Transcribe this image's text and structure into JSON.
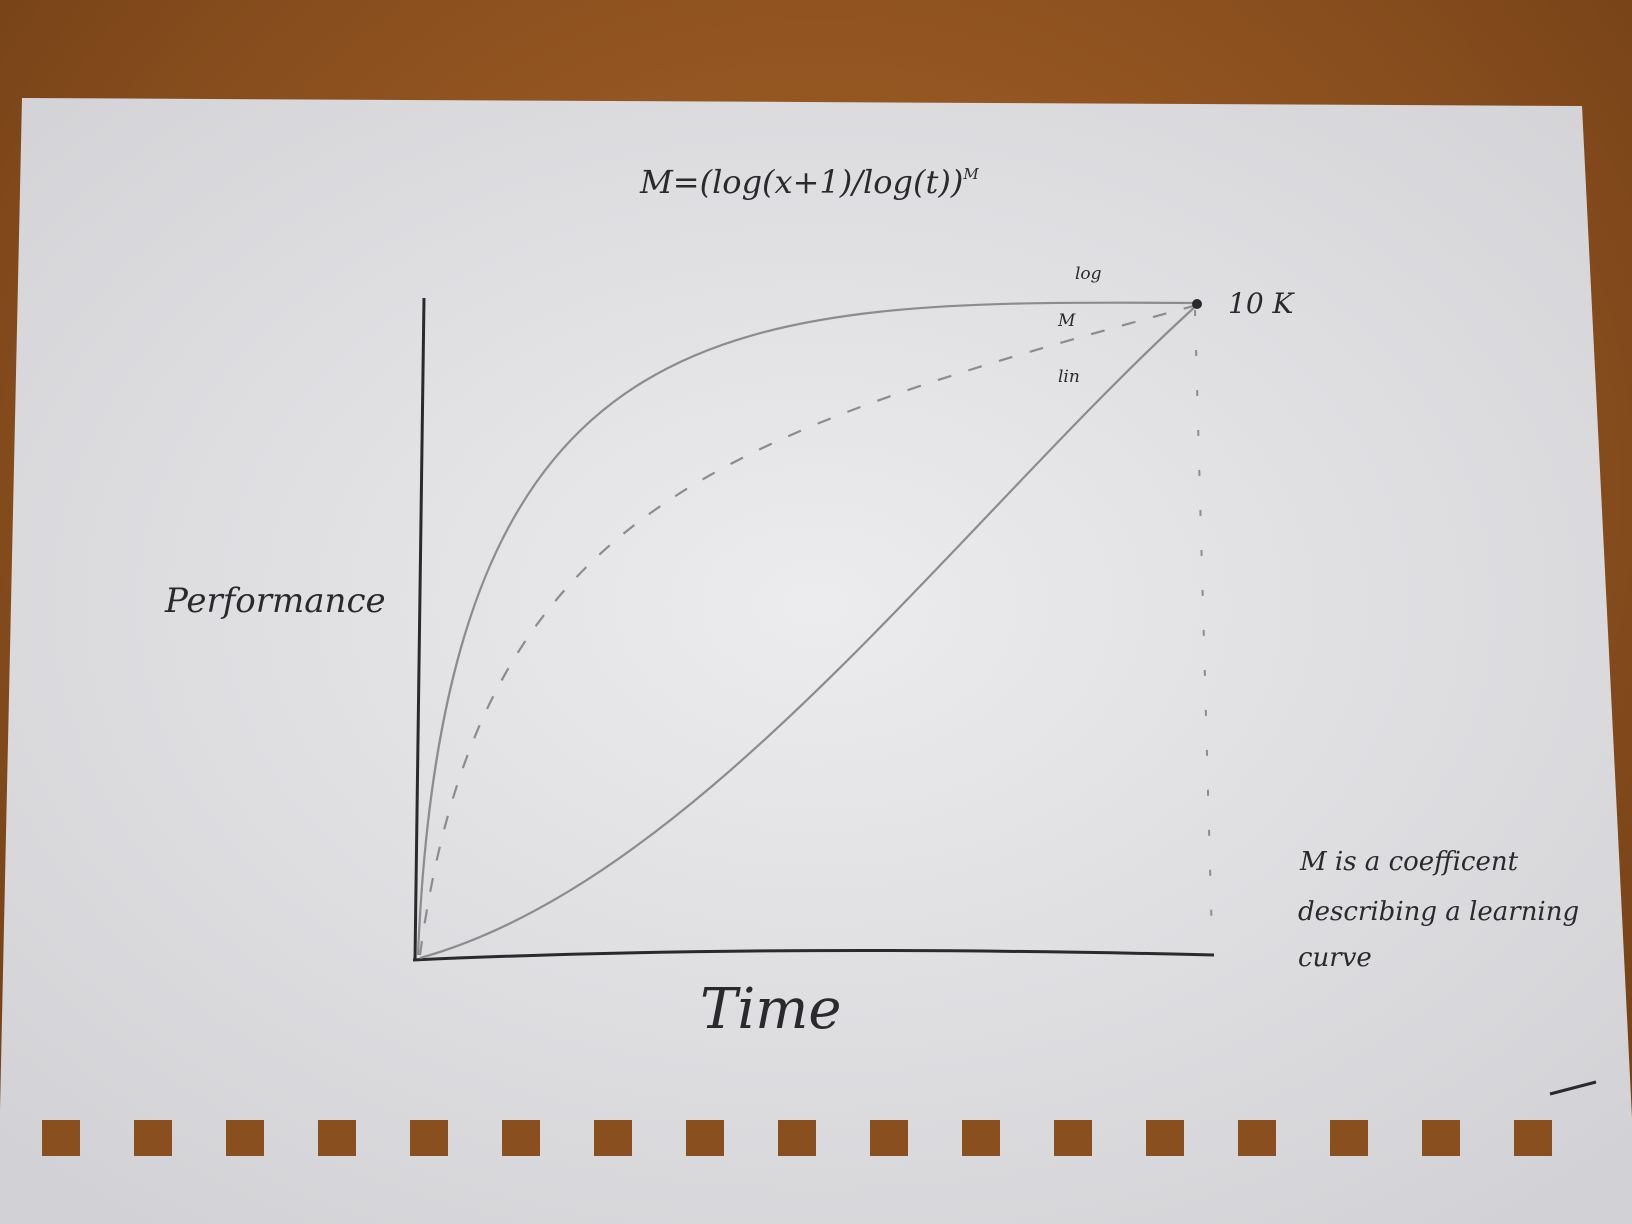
{
  "diagram": {
    "formula": "M=(log(x+1)/log(t))",
    "formula_exponent": "M",
    "x_axis_label": "Time",
    "y_axis_label": "Performance",
    "endpoint_label": "10 K",
    "curves": [
      {
        "name": "log",
        "label": "log",
        "style": "solid"
      },
      {
        "name": "M",
        "label": "M",
        "style": "dashed"
      },
      {
        "name": "lin",
        "label": "lin",
        "style": "solid"
      }
    ],
    "note_lines": [
      "M is a coefficent",
      "describing a learning",
      "curve"
    ]
  },
  "colors": {
    "table": "#8a4f1e",
    "paper": "#e8e8ea",
    "ink": "#2a2a2e",
    "pencil": "#8c8c90"
  },
  "icons": [
    "binder-hole-icon"
  ]
}
